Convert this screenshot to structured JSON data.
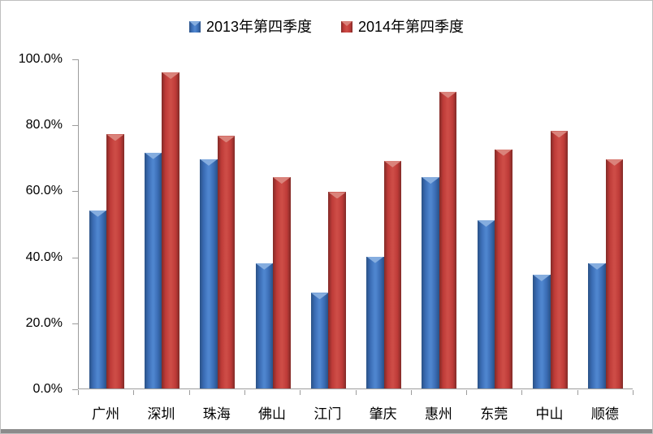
{
  "chart_data": {
    "type": "bar",
    "title": "",
    "categories": [
      "广州",
      "深圳",
      "珠海",
      "佛山",
      "江门",
      "肇庆",
      "惠州",
      "东莞",
      "中山",
      "顺德"
    ],
    "series": [
      {
        "name": "2013年第四季度",
        "values": [
          54.0,
          71.5,
          69.5,
          38.0,
          29.0,
          40.0,
          64.0,
          51.0,
          34.5,
          38.0
        ],
        "color_main": "#3a6cb4",
        "color_edge": "#2a5186",
        "color_center": "#4e85ce",
        "color_bevel": "#85addf"
      },
      {
        "name": "2014年第四季度",
        "values": [
          77.0,
          95.8,
          76.5,
          64.0,
          59.5,
          69.0,
          90.0,
          72.5,
          78.0,
          69.5
        ],
        "color_main": "#be3b38",
        "color_edge": "#822a27",
        "color_center": "#cd4c46",
        "color_bevel": "#da837b"
      }
    ],
    "ylabel": "",
    "xlabel": "",
    "ylim": [
      0,
      100
    ],
    "ytick_values": [
      0,
      20,
      40,
      60,
      80,
      100
    ],
    "ytick_labels": [
      "0.0%",
      "20.0%",
      "40.0%",
      "60.0%",
      "80.0%",
      "100.0%"
    ],
    "grid": false,
    "legend_position": "top"
  },
  "legend": {
    "item_2013": "2013年第四季度",
    "item_2014": "2014年第四季度"
  },
  "colors": {
    "axis": "#9c9c9c",
    "text": "#000000",
    "frame_border": "#bfbfbf",
    "bottom_strip": "#8b8b8b"
  }
}
